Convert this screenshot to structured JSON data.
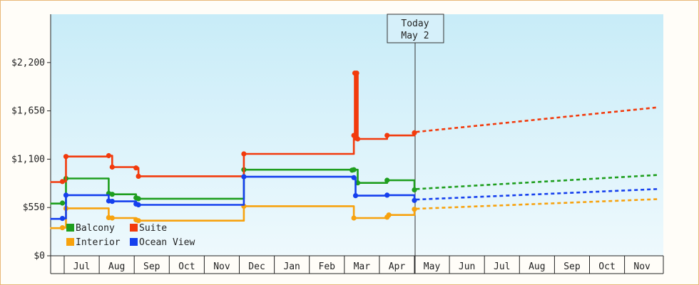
{
  "chart_data": {
    "type": "line",
    "title": "",
    "xlabel": "",
    "ylabel": "",
    "ylim": [
      0,
      2750
    ],
    "y_ticks": [
      {
        "value": 0,
        "label": "$0"
      },
      {
        "value": 550,
        "label": "$550"
      },
      {
        "value": 1100,
        "label": "$1,100"
      },
      {
        "value": 1650,
        "label": "$1,650"
      },
      {
        "value": 2200,
        "label": "$2,200"
      }
    ],
    "months": [
      "Jul",
      "Aug",
      "Sep",
      "Oct",
      "Nov",
      "Dec",
      "Jan",
      "Feb",
      "Mar",
      "Apr",
      "May",
      "Jun",
      "Jul",
      "Aug",
      "Sep",
      "Oct",
      "Nov"
    ],
    "today_marker": {
      "line1": "Today",
      "line2": "May 2",
      "x": 10.02
    },
    "background": {
      "top": "#c8ecf8",
      "bottom": "#eef9fd"
    },
    "legend": {
      "placement": "bottom-left",
      "entries": [
        "Balcony",
        "Suite",
        "Interior",
        "Ocean View"
      ]
    },
    "series": [
      {
        "name": "Balcony",
        "color": "#1e9e1e",
        "x": [
          -0.4,
          -0.05,
          -0.05,
          0.05,
          0.05,
          1.27,
          1.27,
          1.37,
          1.37,
          2.05,
          2.05,
          2.12,
          2.12,
          5.13,
          5.13,
          8.22,
          8.22,
          8.27,
          8.27,
          8.38,
          8.38,
          9.22,
          9.22,
          10.0,
          10.0
        ],
        "y": [
          595,
          595,
          600,
          600,
          880,
          880,
          710,
          710,
          700,
          700,
          660,
          660,
          650,
          650,
          980,
          980,
          975,
          975,
          980,
          980,
          830,
          830,
          860,
          860,
          750
        ],
        "projection": {
          "x": [
            10.05,
            16.95
          ],
          "y": [
            760,
            920
          ]
        }
      },
      {
        "name": "Suite",
        "color": "#f23a0c",
        "x": [
          -0.4,
          -0.05,
          -0.05,
          0.05,
          0.05,
          1.27,
          1.27,
          1.37,
          1.37,
          2.05,
          2.05,
          2.12,
          2.12,
          5.13,
          5.13,
          8.27,
          8.27,
          8.3,
          8.3,
          8.32,
          8.32,
          8.35,
          8.35,
          8.38,
          8.38,
          9.22,
          9.22,
          10.0,
          10.0
        ],
        "y": [
          840,
          840,
          845,
          845,
          1130,
          1130,
          1140,
          1140,
          1010,
          1010,
          1000,
          1000,
          905,
          905,
          1160,
          1160,
          1370,
          1370,
          2080,
          2080,
          1340,
          1340,
          2080,
          2080,
          1330,
          1330,
          1370,
          1370,
          1400
        ],
        "projection": {
          "x": [
            10.05,
            16.95
          ],
          "y": [
            1410,
            1690
          ]
        }
      },
      {
        "name": "Interior",
        "color": "#f7a20e",
        "x": [
          -0.4,
          -0.05,
          -0.05,
          0.05,
          0.05,
          1.27,
          1.27,
          1.37,
          1.37,
          2.05,
          2.05,
          2.12,
          2.12,
          5.13,
          5.13,
          8.27,
          8.27,
          9.22,
          9.22,
          9.27,
          9.27,
          10.0,
          10.0
        ],
        "y": [
          315,
          315,
          320,
          320,
          540,
          540,
          435,
          435,
          430,
          430,
          410,
          410,
          400,
          400,
          565,
          565,
          430,
          430,
          440,
          440,
          465,
          465,
          530
        ],
        "projection": {
          "x": [
            10.05,
            16.95
          ],
          "y": [
            535,
            645
          ]
        }
      },
      {
        "name": "Ocean View",
        "color": "#1540ee",
        "x": [
          -0.4,
          -0.05,
          -0.05,
          0.05,
          0.05,
          1.27,
          1.27,
          1.37,
          1.37,
          2.05,
          2.05,
          2.12,
          2.12,
          5.13,
          5.13,
          8.27,
          8.27,
          8.32,
          8.32,
          9.22,
          9.22,
          10.0,
          10.0
        ],
        "y": [
          420,
          420,
          425,
          425,
          690,
          690,
          625,
          625,
          620,
          620,
          590,
          590,
          580,
          580,
          900,
          900,
          890,
          890,
          685,
          685,
          690,
          690,
          630
        ],
        "projection": {
          "x": [
            10.05,
            16.95
          ],
          "y": [
            640,
            760
          ]
        }
      }
    ]
  }
}
